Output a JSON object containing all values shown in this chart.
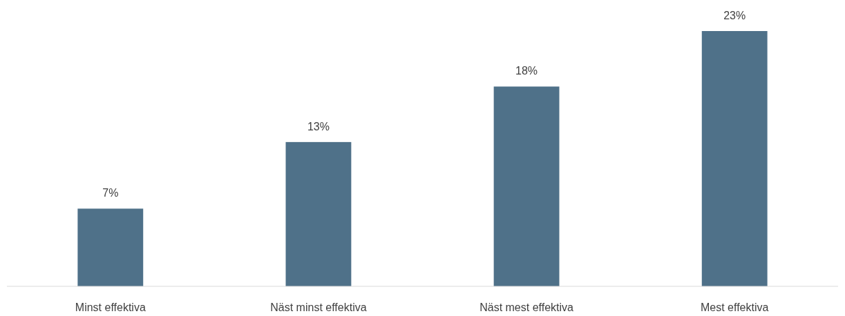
{
  "chart_data": {
    "type": "bar",
    "categories": [
      "Minst effektiva",
      "Näst minst effektiva",
      "Näst mest effektiva",
      "Mest effektiva"
    ],
    "values": [
      7,
      13,
      18,
      23
    ],
    "value_labels": [
      "7%",
      "13%",
      "18%",
      "23%"
    ],
    "color": "#4f7189"
  }
}
